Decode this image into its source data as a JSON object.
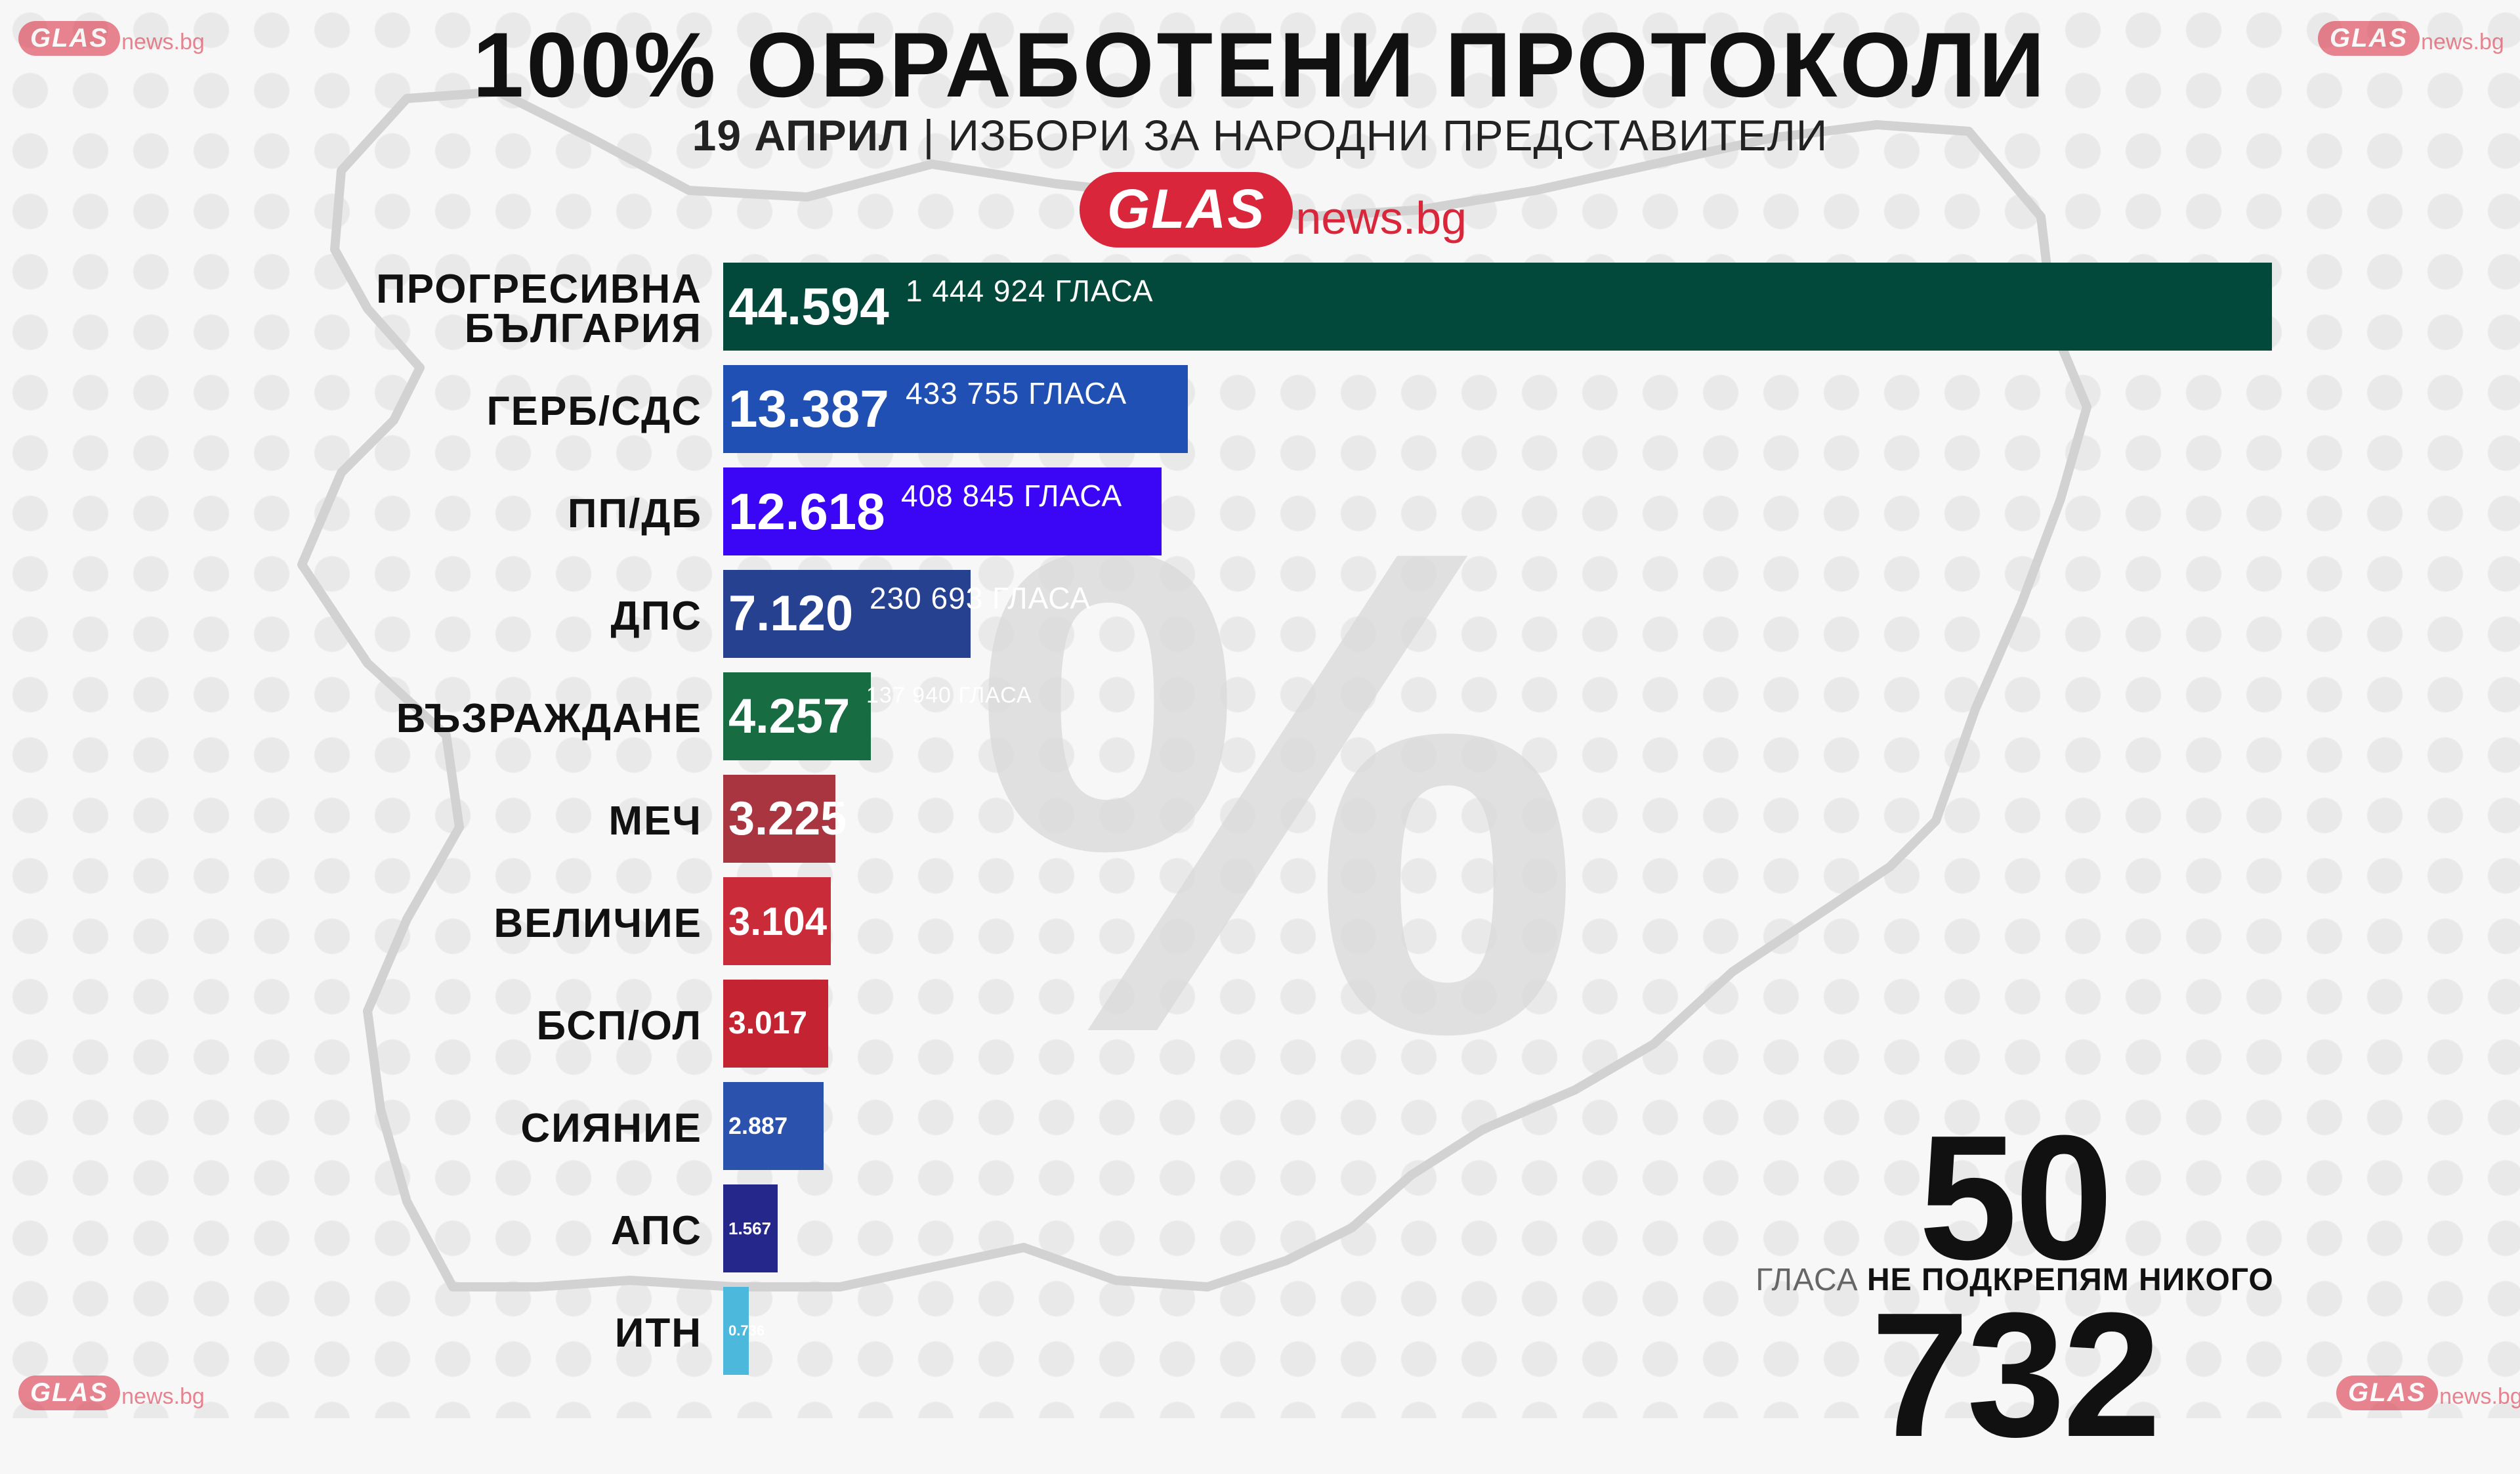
{
  "page": {
    "title": "100% ОБРАБОТЕНИ ПРОТОКОЛИ",
    "subtitle_date": "19 АПРИЛ",
    "subtitle_separator": "|",
    "subtitle_text": "ИЗБОРИ ЗА НАРОДНИ ПРЕДСТАВИТЕЛИ",
    "brand_pill": "GLAS",
    "brand_suffix": "news.bg",
    "brand_color": "#d9263b",
    "background_symbol": "%"
  },
  "chart_data": {
    "type": "bar",
    "orientation": "horizontal",
    "categories": [
      "ПРОГРЕСИВНА\nБЪЛГАРИЯ",
      "ГЕРБ/СДС",
      "ПП/ДБ",
      "ДПС",
      "ВЪЗРАЖДАНЕ",
      "МЕЧ",
      "ВЕЛИЧИЕ",
      "БСП/ОЛ",
      "СИЯНИЕ",
      "АПС",
      "ИТН"
    ],
    "value_labels": [
      "44.594",
      "13.387",
      "12.618",
      "7.120",
      "4.257",
      "3.225",
      "3.104",
      "3.017",
      "2.887",
      "1.567",
      "0.736"
    ],
    "values": [
      44.594,
      13.387,
      12.618,
      7.12,
      4.257,
      3.225,
      3.104,
      3.017,
      2.887,
      1.567,
      0.736
    ],
    "votes_labels": [
      "1 444 924 ГЛАСА",
      "433 755 ГЛАСА",
      "408 845 ГЛАСА",
      "230 693 ГЛАСА",
      "137 940 ГЛАСА",
      "",
      "",
      "",
      "",
      "",
      ""
    ],
    "colors": [
      "#03493b",
      "#2150b5",
      "#3b06f5",
      "#25418f",
      "#176c41",
      "#a8353f",
      "#c92c38",
      "#c42432",
      "#2b52ad",
      "#25278a",
      "#4cb8dc"
    ],
    "xlim": [
      0,
      44.594
    ],
    "grid": false,
    "legend": "none"
  },
  "none_of_the_above": {
    "count": "50 732",
    "caption_prefix": "ГЛАСА",
    "caption_bold": "НЕ ПОДКРЕПЯМ НИКОГО"
  }
}
